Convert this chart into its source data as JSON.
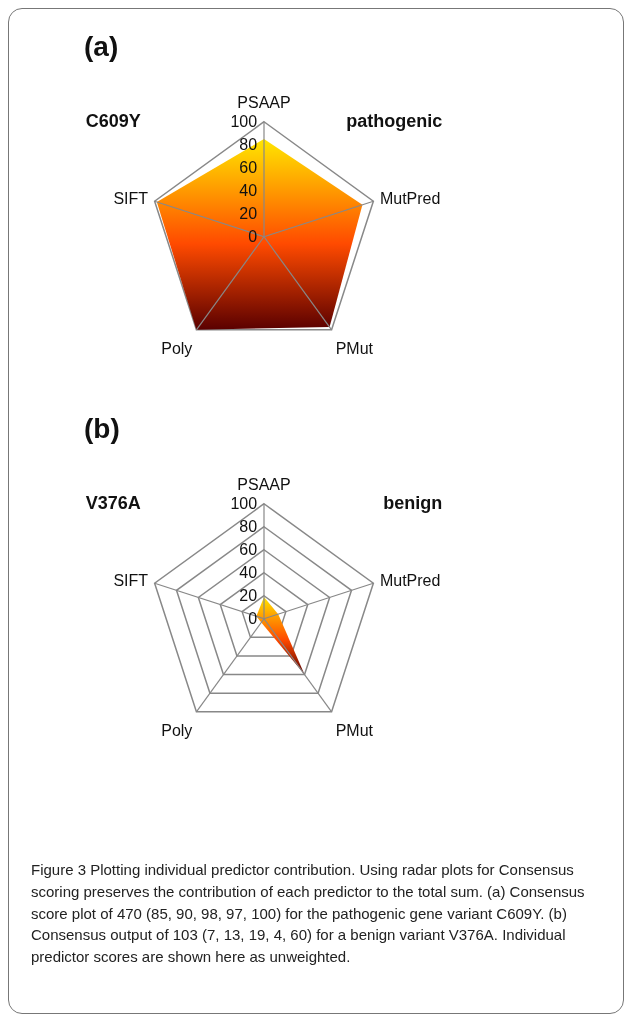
{
  "chart_data": [
    {
      "type": "radar",
      "title": "(a)",
      "annotations": [
        "C609Y",
        "pathogenic"
      ],
      "categories": [
        "PSAAP",
        "MutPred",
        "PMut",
        "Poly",
        "SIFT"
      ],
      "series": [
        {
          "color": "#ff4a00",
          "values": [
            85,
            90,
            97,
            100,
            98
          ]
        }
      ],
      "ylim": [
        0,
        100
      ],
      "yticks": [
        0,
        20,
        40,
        60,
        80,
        100
      ],
      "grid": true
    },
    {
      "type": "radar",
      "title": "(b)",
      "annotations": [
        "V376A",
        "benign",
        "Figure 3 Plotting individual predictor contribution. Using radar plots for Consensus scoring preserves the contribution of each predictor to the total sum. (a) Consensus score plot of 470 (85, 90, 98, 97, 100) for the pathogenic gene variant C609Y. (b) Consensus output of 103 (7, 13, 19, 4, 60) for a benign variant V376A. Individual predictor scores are shown here as unweighted."
      ],
      "categories": [
        "PSAAP",
        "MutPred",
        "PMut",
        "Poly",
        "SIFT"
      ],
      "series": [
        {
          "color": "#ff4a00",
          "values": [
            19,
            13,
            60,
            4,
            7
          ]
        }
      ],
      "ylim": [
        0,
        100
      ],
      "yticks": [
        0,
        20,
        40,
        60,
        80,
        100
      ],
      "grid": true
    }
  ]
}
